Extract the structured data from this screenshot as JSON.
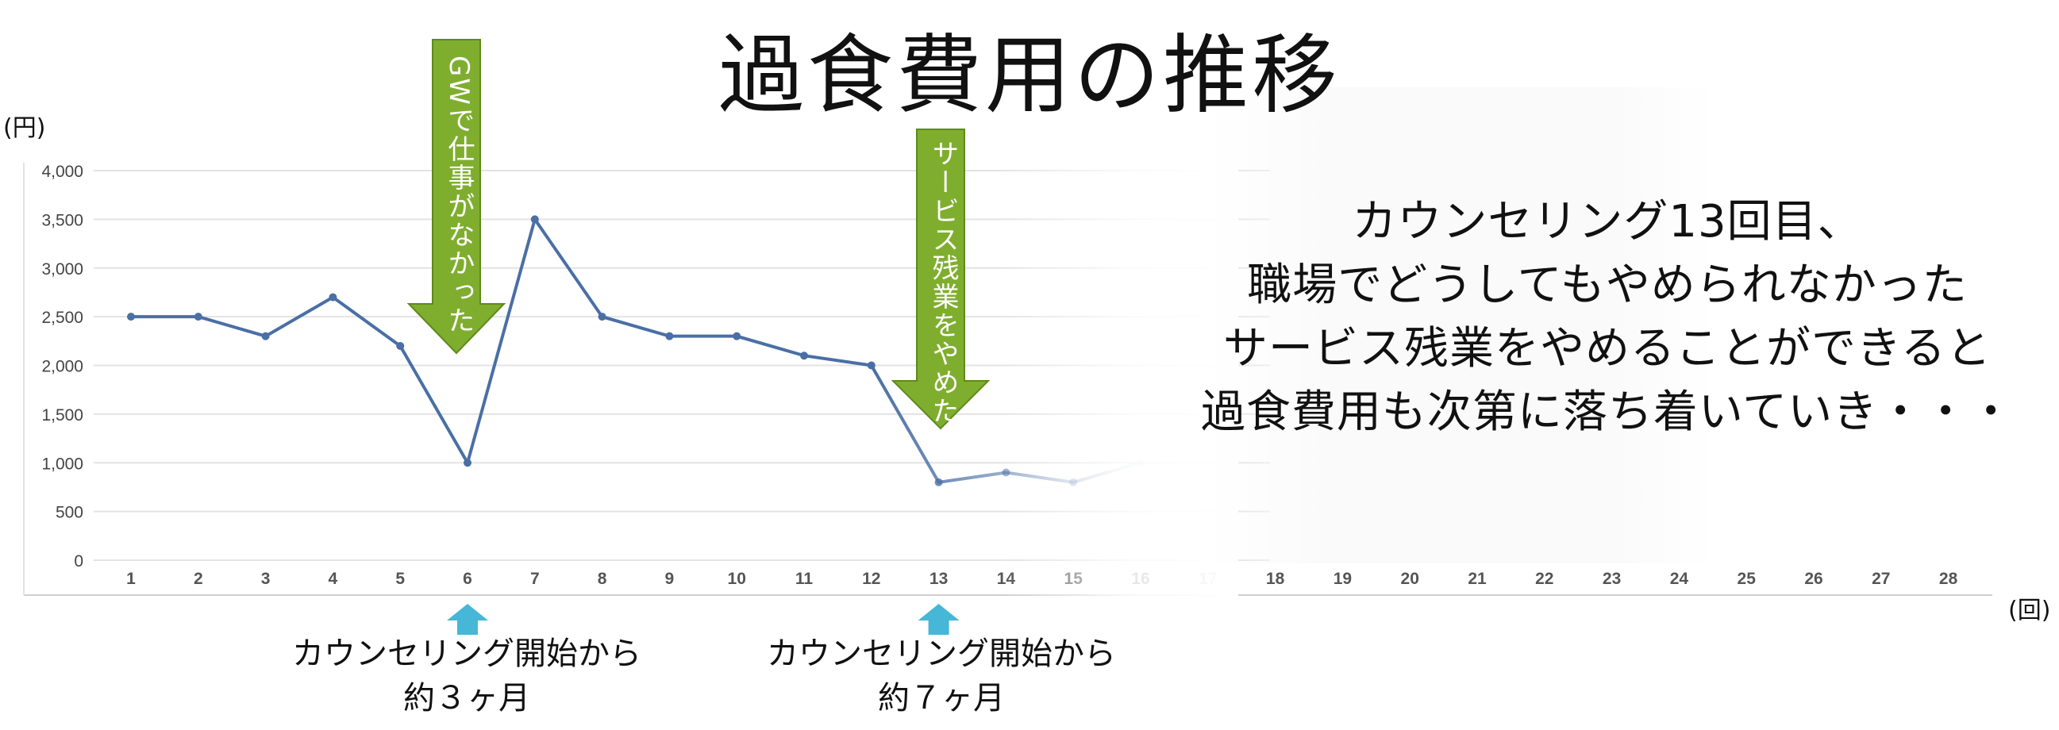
{
  "page": {
    "title": "過食費用の推移",
    "annotation_lines": [
      "カウンセリング13回目、",
      "職場でどうしてもやめられなかった",
      "サービス残業をやめることができると",
      "過食費用も次第に落ち着いていき・・・"
    ],
    "notes": [
      {
        "line1": "カウンセリング開始から",
        "line2": "約３ヶ月"
      },
      {
        "line1": "カウンセリング開始から",
        "line2": "約７ヶ月"
      }
    ],
    "arrows": [
      {
        "label": "GWで仕事がなかった",
        "color": "#7fae2f"
      },
      {
        "label": "サービス残業をやめた",
        "color": "#7fae2f"
      }
    ],
    "marker_color": "#46b7d6"
  },
  "chart_data": {
    "type": "line",
    "title": "過食費用の推移",
    "ylabel": "(円)",
    "xlabel": "(回)",
    "ylim": [
      0,
      4000
    ],
    "yticks": [
      "0",
      "500",
      "1,000",
      "1,500",
      "2,000",
      "2,500",
      "3,000",
      "3,500",
      "4,000"
    ],
    "x": [
      1,
      2,
      3,
      4,
      5,
      6,
      7,
      8,
      9,
      10,
      11,
      12,
      13,
      14,
      15,
      16,
      17,
      18,
      19,
      20,
      21,
      22,
      23,
      24,
      25,
      26,
      27,
      28
    ],
    "series": [
      {
        "color": "#4a6fa5",
        "x": [
          1,
          2,
          3,
          4,
          5,
          6,
          7,
          8,
          9,
          10,
          11,
          12,
          13,
          14,
          15,
          16
        ],
        "values": [
          2500,
          2500,
          2300,
          2700,
          2200,
          1000,
          3500,
          2500,
          2300,
          2300,
          2100,
          2000,
          800,
          900,
          800,
          1000
        ]
      }
    ],
    "grid": true
  }
}
